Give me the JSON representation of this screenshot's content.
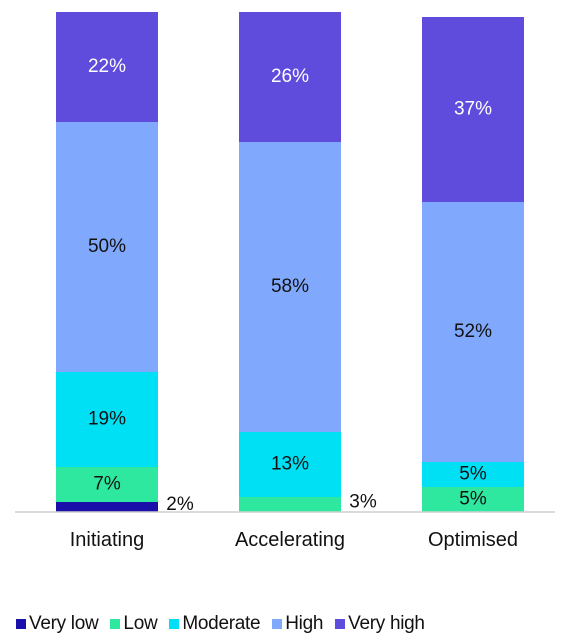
{
  "chart_data": {
    "type": "bar",
    "stacked": true,
    "categories": [
      "Initiating",
      "Accelerating",
      "Optimised"
    ],
    "series": [
      {
        "name": "Very low",
        "color": "#1a0fa8",
        "values": [
          2,
          0,
          0
        ],
        "labels": [
          "2%",
          "",
          ""
        ]
      },
      {
        "name": "Low",
        "color": "#2ee8a0",
        "values": [
          7,
          3,
          5
        ],
        "labels": [
          "7%",
          "3%",
          "5%"
        ]
      },
      {
        "name": "Moderate",
        "color": "#00e0f5",
        "values": [
          19,
          13,
          5
        ],
        "labels": [
          "19%",
          "13%",
          "5%"
        ]
      },
      {
        "name": "High",
        "color": "#80a8fc",
        "values": [
          50,
          58,
          52
        ],
        "labels": [
          "50%",
          "58%",
          "52%"
        ]
      },
      {
        "name": "Very high",
        "color": "#5f4bdc",
        "values": [
          22,
          26,
          37
        ],
        "labels": [
          "22%",
          "26%",
          "37%"
        ]
      }
    ],
    "ylim": [
      0,
      100
    ],
    "grid": false,
    "legend_position": "bottom"
  }
}
